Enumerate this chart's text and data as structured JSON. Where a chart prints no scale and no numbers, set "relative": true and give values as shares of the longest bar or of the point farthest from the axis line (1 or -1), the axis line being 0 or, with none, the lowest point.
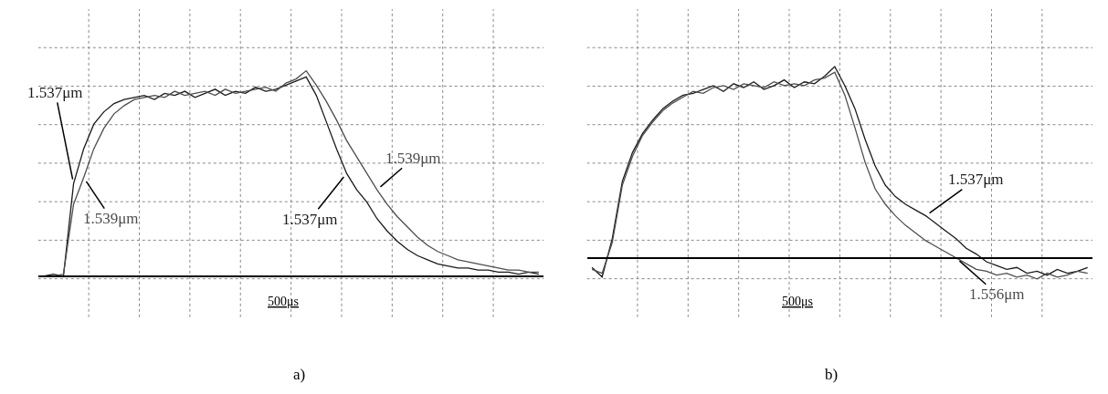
{
  "chart_data": [
    {
      "type": "line",
      "relative": true,
      "grid": true,
      "marker": "none",
      "line_style": "solid",
      "categories": [
        null,
        null,
        null,
        null,
        null,
        null,
        null,
        null,
        null,
        null,
        null,
        null,
        null,
        null,
        null,
        null,
        null,
        null,
        null,
        null,
        null,
        null,
        null,
        null,
        null,
        null,
        null,
        null,
        null,
        null,
        null,
        null,
        null,
        null,
        null,
        null,
        null,
        null,
        null,
        null,
        null,
        null,
        null,
        null,
        null,
        null,
        null,
        null,
        null,
        null
      ],
      "series": [
        {
          "name": "1.537μm",
          "color": "#1a1a1a",
          "values": [
            0.0,
            0.01,
            0.0,
            0.45,
            0.62,
            0.74,
            0.8,
            0.84,
            0.86,
            0.87,
            0.88,
            0.86,
            0.89,
            0.88,
            0.9,
            0.87,
            0.89,
            0.91,
            0.88,
            0.9,
            0.89,
            0.92,
            0.9,
            0.91,
            0.93,
            0.95,
            0.97,
            0.88,
            0.75,
            0.62,
            0.5,
            0.42,
            0.36,
            0.28,
            0.22,
            0.17,
            0.13,
            0.1,
            0.08,
            0.06,
            0.05,
            0.04,
            0.04,
            0.03,
            0.03,
            0.02,
            0.02,
            0.01,
            0.02,
            0.01
          ]
        },
        {
          "name": "1.539μm",
          "color": "#4d4d4d",
          "values": [
            0.0,
            0.0,
            0.01,
            0.35,
            0.48,
            0.62,
            0.72,
            0.79,
            0.83,
            0.86,
            0.87,
            0.88,
            0.87,
            0.9,
            0.88,
            0.89,
            0.9,
            0.88,
            0.91,
            0.89,
            0.9,
            0.91,
            0.92,
            0.9,
            0.94,
            0.96,
            1.0,
            0.93,
            0.85,
            0.76,
            0.66,
            0.58,
            0.5,
            0.42,
            0.35,
            0.29,
            0.24,
            0.19,
            0.15,
            0.12,
            0.1,
            0.08,
            0.07,
            0.06,
            0.05,
            0.04,
            0.03,
            0.03,
            0.02,
            0.02
          ]
        }
      ],
      "annotations": [
        "500μs",
        "a)"
      ]
    },
    {
      "type": "line",
      "relative": true,
      "grid": true,
      "marker": "none",
      "line_style": "solid",
      "categories": [
        null,
        null,
        null,
        null,
        null,
        null,
        null,
        null,
        null,
        null,
        null,
        null,
        null,
        null,
        null,
        null,
        null,
        null,
        null,
        null,
        null,
        null,
        null,
        null,
        null,
        null,
        null,
        null,
        null,
        null,
        null,
        null,
        null,
        null,
        null,
        null,
        null,
        null,
        null,
        null,
        null,
        null,
        null,
        null,
        null,
        null,
        null,
        null,
        null,
        null
      ],
      "series": [
        {
          "name": "1.537μm",
          "color": "#1a1a1a",
          "values": [
            -0.05,
            -0.1,
            0.1,
            0.4,
            0.55,
            0.65,
            0.72,
            0.78,
            0.82,
            0.85,
            0.86,
            0.88,
            0.9,
            0.87,
            0.91,
            0.89,
            0.92,
            0.88,
            0.9,
            0.93,
            0.89,
            0.92,
            0.91,
            0.95,
            1.0,
            0.9,
            0.78,
            0.62,
            0.48,
            0.38,
            0.32,
            0.28,
            0.25,
            0.22,
            0.18,
            0.14,
            0.1,
            0.05,
            0.02,
            -0.02,
            -0.04,
            -0.06,
            -0.05,
            -0.08,
            -0.07,
            -0.09,
            -0.06,
            -0.08,
            -0.07,
            -0.05
          ]
        },
        {
          "name": "1.556μm",
          "color": "#4d4d4d",
          "values": [
            -0.06,
            -0.08,
            0.08,
            0.38,
            0.53,
            0.64,
            0.71,
            0.77,
            0.81,
            0.84,
            0.87,
            0.86,
            0.89,
            0.9,
            0.88,
            0.91,
            0.9,
            0.89,
            0.92,
            0.9,
            0.91,
            0.9,
            0.93,
            0.94,
            0.97,
            0.85,
            0.68,
            0.5,
            0.36,
            0.28,
            0.22,
            0.17,
            0.13,
            0.09,
            0.06,
            0.03,
            0.0,
            -0.03,
            -0.06,
            -0.07,
            -0.09,
            -0.08,
            -0.1,
            -0.09,
            -0.11,
            -0.08,
            -0.1,
            -0.09,
            -0.07,
            -0.08
          ]
        }
      ],
      "annotations": [
        "500μs",
        "b)"
      ]
    }
  ]
}
